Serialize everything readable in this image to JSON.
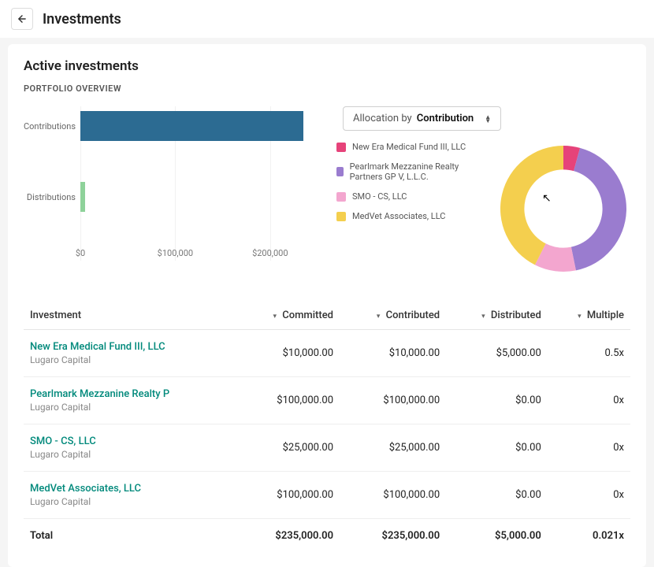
{
  "header": {
    "title": "Investments"
  },
  "subheading": "Active investments",
  "section_label": "PORTFOLIO OVERVIEW",
  "alloc_selector": {
    "prefix": "Allocation by",
    "value": "Contribution"
  },
  "colors": {
    "contrib_bar": "#2c6b92",
    "dist_bar": "#8ed29a",
    "grid": "#f2f2f2",
    "series": {
      "new_era": "#e6437a",
      "pearlmark": "#9a7ccf",
      "smo": "#f3a6cf",
      "medvet": "#f4cf4e"
    }
  },
  "barchart": {
    "rows": [
      {
        "label": "Contributions",
        "value": 235000,
        "color_key": "contrib_bar"
      },
      {
        "label": "Distributions",
        "value": 5000,
        "color_key": "dist_bar"
      }
    ],
    "xmax": 250000,
    "ticks": [
      {
        "value": 0,
        "label": "$0"
      },
      {
        "value": 100000,
        "label": "$100,000"
      },
      {
        "value": 200000,
        "label": "$200,000"
      }
    ]
  },
  "legend": [
    {
      "label": "New Era Medical Fund III, LLC",
      "color_key": "new_era"
    },
    {
      "label": "Pearlmark Mezzanine Realty Partners GP V, L.L.C.",
      "color_key": "pearlmark"
    },
    {
      "label": "SMO - CS, LLC",
      "color_key": "smo"
    },
    {
      "label": "MedVet Associates, LLC",
      "color_key": "medvet"
    }
  ],
  "donut": {
    "total": 235000,
    "segments": [
      {
        "color_key": "new_era",
        "value": 10000
      },
      {
        "color_key": "pearlmark",
        "value": 100000
      },
      {
        "color_key": "smo",
        "value": 25000
      },
      {
        "color_key": "medvet",
        "value": 100000
      }
    ],
    "inner_ratio": 0.62
  },
  "table": {
    "columns": [
      "Investment",
      "Committed",
      "Contributed",
      "Distributed",
      "Multiple"
    ],
    "rows": [
      {
        "name": "New Era Medical Fund III, LLC",
        "sponsor": "Lugaro Capital",
        "committed": "$10,000.00",
        "contributed": "$10,000.00",
        "distributed": "$5,000.00",
        "multiple": "0.5x"
      },
      {
        "name": "Pearlmark Mezzanine Realty P",
        "sponsor": "Lugaro Capital",
        "committed": "$100,000.00",
        "contributed": "$100,000.00",
        "distributed": "$0.00",
        "multiple": "0x"
      },
      {
        "name": "SMO - CS, LLC",
        "sponsor": "Lugaro Capital",
        "committed": "$25,000.00",
        "contributed": "$25,000.00",
        "distributed": "$0.00",
        "multiple": "0x"
      },
      {
        "name": "MedVet Associates, LLC",
        "sponsor": "Lugaro Capital",
        "committed": "$100,000.00",
        "contributed": "$100,000.00",
        "distributed": "$0.00",
        "multiple": "0x"
      }
    ],
    "total": {
      "label": "Total",
      "committed": "$235,000.00",
      "contributed": "$235,000.00",
      "distributed": "$5,000.00",
      "multiple": "0.021x"
    }
  }
}
